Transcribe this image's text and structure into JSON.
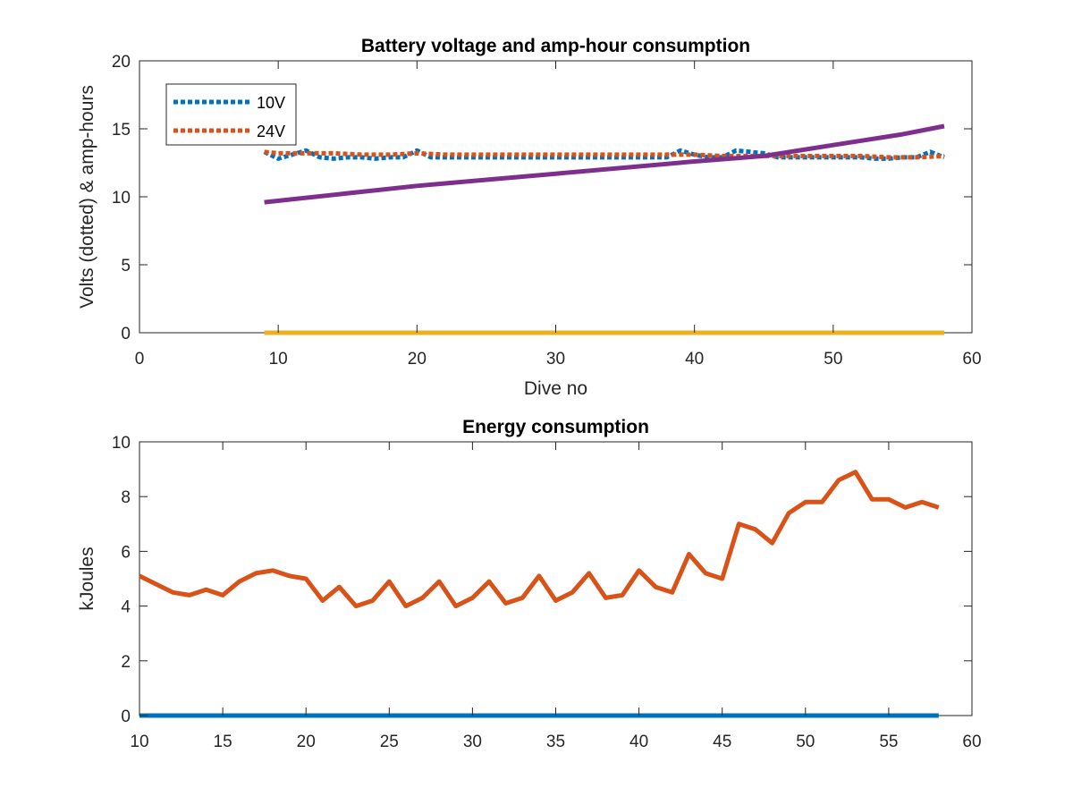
{
  "chart_data": [
    {
      "type": "line",
      "title": "Battery voltage and amp-hour consumption",
      "xlabel": "Dive no",
      "ylabel": "Volts (dotted) & amp-hours",
      "xlim": [
        0,
        60
      ],
      "ylim": [
        0,
        20
      ],
      "xticks": [
        0,
        10,
        20,
        30,
        40,
        50,
        60
      ],
      "yticks": [
        0,
        5,
        10,
        15,
        20
      ],
      "grid": false,
      "legend_position": "top-left",
      "series": [
        {
          "name": "10V",
          "style": "dotted",
          "color": "#0072BD",
          "x": [
            9,
            10,
            11,
            12,
            13,
            14,
            15,
            16,
            17,
            18,
            19,
            20,
            21,
            22,
            23,
            24,
            25,
            26,
            27,
            28,
            29,
            30,
            31,
            32,
            33,
            34,
            35,
            36,
            37,
            38,
            39,
            40,
            41,
            42,
            43,
            44,
            45,
            46,
            47,
            48,
            49,
            50,
            51,
            52,
            53,
            54,
            55,
            56,
            57,
            58
          ],
          "y": [
            13.3,
            12.8,
            13.1,
            13.4,
            12.9,
            12.8,
            12.9,
            12.9,
            12.8,
            12.9,
            12.9,
            13.4,
            12.9,
            12.9,
            12.9,
            12.9,
            12.9,
            12.9,
            12.9,
            12.9,
            12.9,
            12.9,
            12.9,
            12.9,
            12.9,
            12.9,
            12.9,
            12.9,
            12.9,
            12.9,
            13.4,
            13.1,
            12.9,
            12.9,
            13.4,
            13.3,
            13.2,
            12.9,
            12.9,
            12.9,
            12.9,
            12.9,
            12.9,
            12.9,
            12.8,
            12.8,
            12.9,
            12.9,
            13.3,
            12.9
          ]
        },
        {
          "name": "24V",
          "style": "dotted",
          "color": "#D95319",
          "x": [
            9,
            10,
            12,
            14,
            16,
            18,
            20,
            22,
            24,
            26,
            28,
            30,
            32,
            34,
            36,
            38,
            40,
            42,
            44,
            46,
            48,
            50,
            52,
            54,
            56,
            58
          ],
          "y": [
            13.3,
            13.2,
            13.2,
            13.2,
            13.1,
            13.1,
            13.2,
            13.1,
            13.1,
            13.1,
            13.1,
            13.1,
            13.1,
            13.1,
            13.1,
            13.1,
            13.1,
            13.0,
            13.0,
            13.0,
            13.0,
            13.0,
            13.0,
            12.9,
            12.9,
            13.0
          ]
        },
        {
          "style": "solid",
          "color": "#7E2F8E",
          "x": [
            9,
            20,
            30,
            40,
            45,
            50,
            55,
            58
          ],
          "y": [
            9.6,
            10.8,
            11.7,
            12.6,
            13.0,
            13.8,
            14.6,
            15.2
          ]
        },
        {
          "style": "solid",
          "color": "#EDB120",
          "x": [
            9,
            58
          ],
          "y": [
            0,
            0
          ]
        }
      ]
    },
    {
      "type": "line",
      "title": "Energy consumption",
      "xlabel": "",
      "ylabel": "kJoules",
      "xlim": [
        10,
        60
      ],
      "ylim": [
        0,
        10
      ],
      "xticks": [
        10,
        15,
        20,
        25,
        30,
        35,
        40,
        45,
        50,
        55,
        60
      ],
      "yticks": [
        0,
        2,
        4,
        6,
        8,
        10
      ],
      "grid": false,
      "series": [
        {
          "style": "solid",
          "color": "#D95319",
          "x": [
            10,
            11,
            12,
            13,
            14,
            15,
            16,
            17,
            18,
            19,
            20,
            21,
            22,
            23,
            24,
            25,
            26,
            27,
            28,
            29,
            30,
            31,
            32,
            33,
            34,
            35,
            36,
            37,
            38,
            39,
            40,
            41,
            42,
            43,
            44,
            45,
            46,
            47,
            48,
            49,
            50,
            51,
            52,
            53,
            54,
            55,
            56,
            57,
            58
          ],
          "y": [
            5.1,
            4.8,
            4.5,
            4.4,
            4.6,
            4.4,
            4.9,
            5.2,
            5.3,
            5.1,
            5.0,
            4.2,
            4.7,
            4.0,
            4.2,
            4.9,
            4.0,
            4.3,
            4.9,
            4.0,
            4.3,
            4.9,
            4.1,
            4.3,
            5.1,
            4.2,
            4.5,
            5.2,
            4.3,
            4.4,
            5.3,
            4.7,
            4.5,
            5.9,
            5.2,
            5.0,
            7.0,
            6.8,
            6.3,
            7.4,
            7.8,
            7.8,
            8.6,
            8.9,
            7.9,
            7.9,
            7.6,
            7.8,
            7.6
          ]
        },
        {
          "style": "solid",
          "color": "#0072BD",
          "x": [
            10,
            58
          ],
          "y": [
            0,
            0
          ]
        }
      ]
    }
  ]
}
